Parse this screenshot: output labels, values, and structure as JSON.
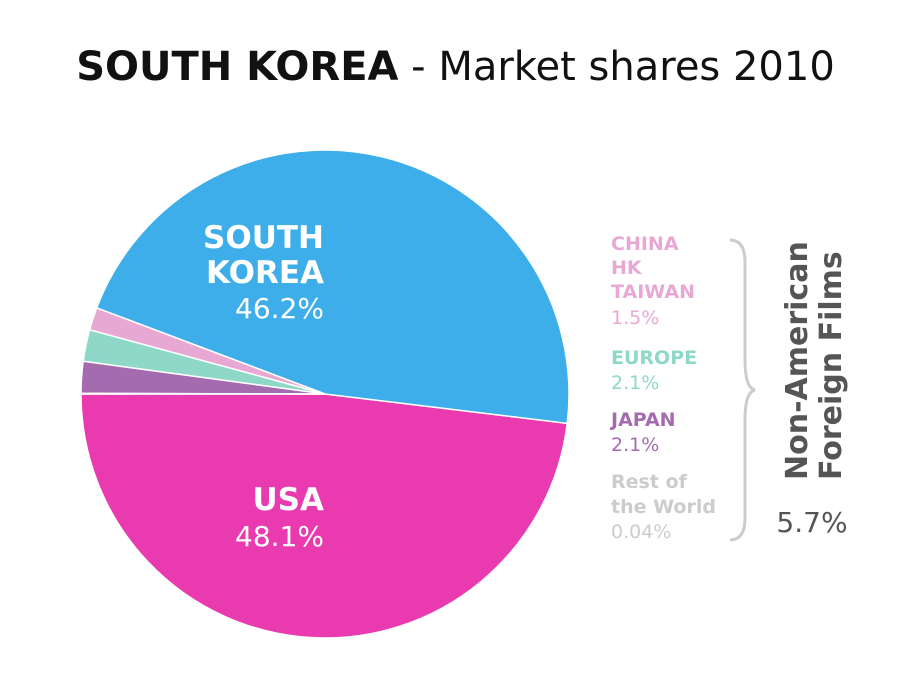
{
  "title": {
    "bold": "SOUTH KOREA",
    "rest": " - Market shares 2010"
  },
  "chart_data": {
    "type": "pie",
    "title": "SOUTH KOREA - Market shares 2010",
    "slices": [
      {
        "label": "USA",
        "value": 48.1,
        "pct_label": "48.1%",
        "color": "#ea3aaf"
      },
      {
        "label": "SOUTH KOREA",
        "value": 46.2,
        "pct_label": "46.2%",
        "color": "#3daee9"
      },
      {
        "label": "CHINA HK TAIWAN",
        "value": 1.5,
        "pct_label": "1.5%",
        "color": "#e8a8d4"
      },
      {
        "label": "EUROPE",
        "value": 2.1,
        "pct_label": "2.1%",
        "color": "#8fd8c8"
      },
      {
        "label": "JAPAN",
        "value": 2.1,
        "pct_label": "2.1%",
        "color": "#a46bae"
      },
      {
        "label": "Rest of the World",
        "value": 0.04,
        "pct_label": "0.04%",
        "color": "#cccccc"
      }
    ],
    "inside_labels": {
      "south_korea_line1": "SOUTH",
      "south_korea_line2": "KOREA",
      "south_korea_pct": "46.2%",
      "usa_line1": "USA",
      "usa_pct": "48.1%"
    },
    "side_labels": {
      "china_line1": "CHINA",
      "china_line2": "HK",
      "china_line3": "TAIWAN",
      "china_pct": "1.5%",
      "europe": "EUROPE",
      "europe_pct": "2.1%",
      "japan": "JAPAN",
      "japan_pct": "2.1%",
      "rest_line1": "Rest of",
      "rest_line2": "the World",
      "rest_pct": "0.04%"
    },
    "group": {
      "line1": "Non-American",
      "line2": "Foreign Films",
      "total": "5.7%"
    }
  },
  "colors": {
    "usa": "#ea3aaf",
    "south_korea": "#3daee9",
    "china": "#e8a8d4",
    "europe": "#8fd8c8",
    "japan": "#a46bae",
    "rest": "#cccccc",
    "group_text": "#555555",
    "brace": "#cccccc"
  }
}
